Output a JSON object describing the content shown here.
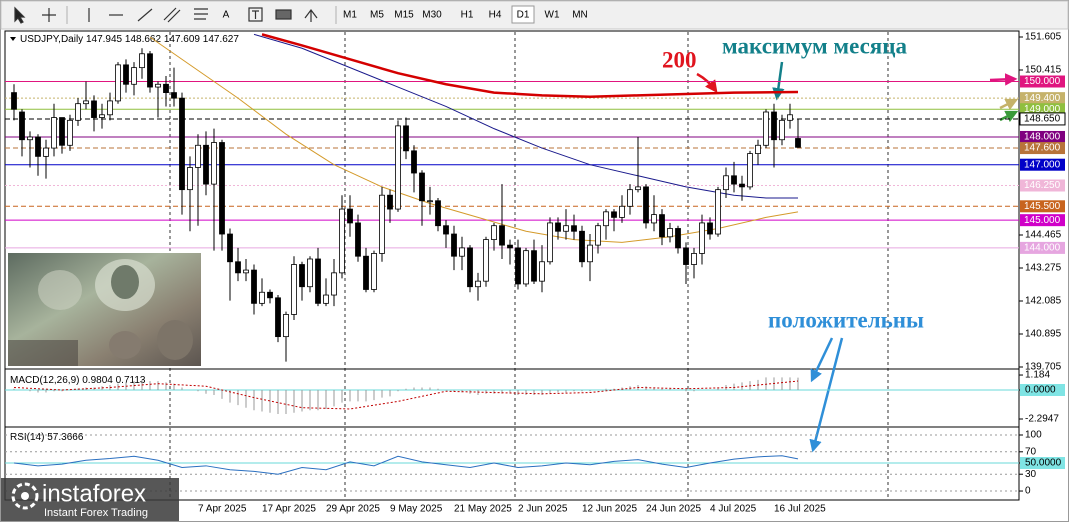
{
  "toolbar": {
    "tools_text": [
      "A"
    ],
    "timeframes": [
      "M1",
      "M5",
      "M15",
      "M30",
      "H1",
      "H4",
      "D1",
      "W1",
      "MN"
    ]
  },
  "logo": {
    "name": "instaforex",
    "tagline": "Instant Forex Trading"
  },
  "chart_data": [
    {
      "type": "candlestick",
      "title": "USDJPY,Daily",
      "up_color": "#ffffff",
      "down_color": "#000000",
      "categories": [
        null,
        null,
        null,
        null,
        null,
        null,
        null,
        null,
        null,
        null,
        null,
        null,
        null,
        null,
        null,
        null,
        null,
        null,
        null,
        null,
        null,
        null,
        null,
        "7 Apr 2025",
        null,
        null,
        null,
        null,
        null,
        null,
        null,
        "17 Apr 2025",
        null,
        null,
        null,
        null,
        null,
        null,
        null,
        "29 Apr 2025",
        null,
        null,
        null,
        null,
        null,
        null,
        null,
        "9 May 2025",
        null,
        null,
        null,
        null,
        null,
        null,
        null,
        "21 May 2025",
        null,
        null,
        null,
        null,
        null,
        null,
        null,
        "2 Jun 2025",
        null,
        null,
        null,
        null,
        null,
        null,
        null,
        "12 Jun 2025",
        null,
        null,
        null,
        null,
        null,
        null,
        null,
        "24 Jun 2025",
        null,
        null,
        null,
        null,
        null,
        null,
        null,
        "4 Jul 2025",
        null,
        null,
        null,
        null,
        null,
        null,
        null,
        "16 Jul 2025",
        null,
        null,
        null
      ],
      "ohlc": [
        [
          149.6,
          149.9,
          148.6,
          149.0
        ],
        [
          148.9,
          149.0,
          147.3,
          147.9
        ],
        [
          147.9,
          148.2,
          146.9,
          148.0
        ],
        [
          148.0,
          148.1,
          146.6,
          147.3
        ],
        [
          147.3,
          147.9,
          146.5,
          147.6
        ],
        [
          147.6,
          149.2,
          147.3,
          148.7
        ],
        [
          148.7,
          148.7,
          147.4,
          147.7
        ],
        [
          147.7,
          148.8,
          147.5,
          148.6
        ],
        [
          148.6,
          149.4,
          148.4,
          149.2
        ],
        [
          149.2,
          150.0,
          149.0,
          149.3
        ],
        [
          149.3,
          149.5,
          148.2,
          148.7
        ],
        [
          148.7,
          149.2,
          148.3,
          148.8
        ],
        [
          148.8,
          149.6,
          148.6,
          149.3
        ],
        [
          149.3,
          150.7,
          149.2,
          150.6
        ],
        [
          150.6,
          150.8,
          149.6,
          149.9
        ],
        [
          149.9,
          150.7,
          149.5,
          150.5
        ],
        [
          150.5,
          151.2,
          150.1,
          151.0
        ],
        [
          151.0,
          151.1,
          149.6,
          149.8
        ],
        [
          149.8,
          150.0,
          148.7,
          149.9
        ],
        [
          149.9,
          150.2,
          149.1,
          149.6
        ],
        [
          149.6,
          150.5,
          149.1,
          149.4
        ],
        [
          149.4,
          149.6,
          145.2,
          146.1
        ],
        [
          146.1,
          147.3,
          144.6,
          146.9
        ],
        [
          146.9,
          148.1,
          144.8,
          147.7
        ],
        [
          147.7,
          148.2,
          145.9,
          146.3
        ],
        [
          146.3,
          148.3,
          143.9,
          147.8
        ],
        [
          147.8,
          147.9,
          143.9,
          144.5
        ],
        [
          144.5,
          144.7,
          142.1,
          143.5
        ],
        [
          143.5,
          144.0,
          142.8,
          143.1
        ],
        [
          143.1,
          143.6,
          142.8,
          143.2
        ],
        [
          143.2,
          143.4,
          141.6,
          142.0
        ],
        [
          142.0,
          142.9,
          141.9,
          142.4
        ],
        [
          142.4,
          142.5,
          142.0,
          142.2
        ],
        [
          142.2,
          142.3,
          140.6,
          140.8
        ],
        [
          140.8,
          141.7,
          139.9,
          141.6
        ],
        [
          141.6,
          143.7,
          141.4,
          143.4
        ],
        [
          143.4,
          143.5,
          142.1,
          142.6
        ],
        [
          142.6,
          143.7,
          142.4,
          143.6
        ],
        [
          143.6,
          144.0,
          141.9,
          142.0
        ],
        [
          142.0,
          142.9,
          141.9,
          142.3
        ],
        [
          142.3,
          143.6,
          141.9,
          143.1
        ],
        [
          143.1,
          145.9,
          142.9,
          145.4
        ],
        [
          145.4,
          145.9,
          144.4,
          144.9
        ],
        [
          144.9,
          145.2,
          143.5,
          143.7
        ],
        [
          143.7,
          144.0,
          142.4,
          142.5
        ],
        [
          142.5,
          143.9,
          142.4,
          143.8
        ],
        [
          143.8,
          146.2,
          143.5,
          145.9
        ],
        [
          145.9,
          146.1,
          144.9,
          145.4
        ],
        [
          145.4,
          148.6,
          145.3,
          148.4
        ],
        [
          148.4,
          148.7,
          147.2,
          147.5
        ],
        [
          147.5,
          147.7,
          146.0,
          146.7
        ],
        [
          146.7,
          146.8,
          144.8,
          145.7
        ],
        [
          145.7,
          146.2,
          145.2,
          145.7
        ],
        [
          145.7,
          145.8,
          144.6,
          144.8
        ],
        [
          144.8,
          145.0,
          144.0,
          144.5
        ],
        [
          144.5,
          144.8,
          143.2,
          143.7
        ],
        [
          143.7,
          144.4,
          143.2,
          144.0
        ],
        [
          144.0,
          144.1,
          142.4,
          142.6
        ],
        [
          142.6,
          143.1,
          142.1,
          142.8
        ],
        [
          142.8,
          144.4,
          142.6,
          144.3
        ],
        [
          144.3,
          144.9,
          143.9,
          144.8
        ],
        [
          144.8,
          146.3,
          143.6,
          144.1
        ],
        [
          144.1,
          144.3,
          143.4,
          144.0
        ],
        [
          144.0,
          144.3,
          142.5,
          142.7
        ],
        [
          142.7,
          144.0,
          142.6,
          143.9
        ],
        [
          143.9,
          144.3,
          142.7,
          142.8
        ],
        [
          142.8,
          144.1,
          142.4,
          143.5
        ],
        [
          143.5,
          145.1,
          143.4,
          144.9
        ],
        [
          144.9,
          145.1,
          144.3,
          144.6
        ],
        [
          144.6,
          145.4,
          144.3,
          144.8
        ],
        [
          144.8,
          145.2,
          144.3,
          144.6
        ],
        [
          144.6,
          144.8,
          143.3,
          143.5
        ],
        [
          143.5,
          144.5,
          142.8,
          144.1
        ],
        [
          144.1,
          144.9,
          143.8,
          144.8
        ],
        [
          144.8,
          145.4,
          144.3,
          145.3
        ],
        [
          145.3,
          145.4,
          144.6,
          145.1
        ],
        [
          145.1,
          145.9,
          144.9,
          145.5
        ],
        [
          145.5,
          146.3,
          145.2,
          146.1
        ],
        [
          146.1,
          148.0,
          146.0,
          146.2
        ],
        [
          146.2,
          146.3,
          144.7,
          144.9
        ],
        [
          144.9,
          145.9,
          144.6,
          145.2
        ],
        [
          145.2,
          145.4,
          144.1,
          144.4
        ],
        [
          144.4,
          144.9,
          144.2,
          144.7
        ],
        [
          144.7,
          144.8,
          143.8,
          144.0
        ],
        [
          144.0,
          144.2,
          142.7,
          143.4
        ],
        [
          143.4,
          144.0,
          142.9,
          143.8
        ],
        [
          143.8,
          145.2,
          143.4,
          144.9
        ],
        [
          144.9,
          145.1,
          144.3,
          144.5
        ],
        [
          144.5,
          146.2,
          144.4,
          146.1
        ],
        [
          146.1,
          146.9,
          145.8,
          146.6
        ],
        [
          146.6,
          147.1,
          146.0,
          146.3
        ],
        [
          146.3,
          146.6,
          145.7,
          146.2
        ],
        [
          146.2,
          147.5,
          146.1,
          147.4
        ],
        [
          147.4,
          147.9,
          147.0,
          147.7
        ],
        [
          147.7,
          149.0,
          147.6,
          148.9
        ],
        [
          148.9,
          149.2,
          146.9,
          147.9
        ],
        [
          147.9,
          148.8,
          147.7,
          148.6
        ],
        [
          148.6,
          149.2,
          148.3,
          148.8
        ],
        [
          147.945,
          148.662,
          147.609,
          147.627
        ]
      ],
      "series": [
        {
          "color": "#d40000",
          "x": [
            31,
            36,
            42,
            48,
            54,
            60,
            66,
            72,
            78,
            84,
            90,
            98
          ],
          "values": [
            151.7,
            151.3,
            150.8,
            150.3,
            149.9,
            149.6,
            149.5,
            149.45,
            149.5,
            149.55,
            149.6,
            149.62
          ]
        },
        {
          "color": "#1a1a8c",
          "x": [
            30,
            36,
            42,
            48,
            54,
            60,
            66,
            72,
            78,
            84,
            90,
            94,
            98
          ],
          "values": [
            151.7,
            151.2,
            150.5,
            149.8,
            149.1,
            148.3,
            147.6,
            147.0,
            146.6,
            146.2,
            145.9,
            145.8,
            145.8
          ]
        },
        {
          "color": "#d49a2a",
          "x": [
            17,
            22,
            28,
            34,
            40,
            46,
            52,
            58,
            64,
            70,
            76,
            82,
            88,
            94,
            98
          ],
          "values": [
            151.6,
            150.6,
            149.4,
            148.1,
            147.0,
            146.2,
            145.6,
            145.1,
            144.6,
            144.3,
            144.2,
            144.4,
            144.7,
            145.1,
            145.3
          ]
        }
      ],
      "levels": [
        {
          "value": 150,
          "label": "150.000",
          "color": "#e0157f"
        },
        {
          "value": 149.4,
          "label": "149.400",
          "color": "#c5b26a",
          "style": "dotted"
        },
        {
          "value": 149,
          "label": "149.000",
          "color": "#8fbf3f"
        },
        {
          "value": 148.65,
          "label": "148.650",
          "color": "#000000",
          "box": "#ffffff",
          "style": "dashed"
        },
        {
          "value": 148,
          "label": "148.000",
          "color": "#800080"
        },
        {
          "value": 147.6,
          "label": "147.600",
          "color": "#b8733a",
          "style": "dashed"
        },
        {
          "value": 147,
          "label": "147.000",
          "color": "#0000c8"
        },
        {
          "value": 146.25,
          "label": "146.250",
          "color": "#f0b6d8",
          "style": "dotted"
        },
        {
          "value": 145.5,
          "label": "145.500",
          "color": "#c8641e",
          "style": "dashed"
        },
        {
          "value": 145,
          "label": "145.000",
          "color": "#d000c8"
        },
        {
          "value": 144,
          "label": "144.000",
          "color": "#e6a6e0"
        }
      ],
      "annotations": [
        {
          "text": "200",
          "color": "#e0141e"
        },
        {
          "text": "максимум месяца",
          "color": "#13808a"
        },
        {
          "text": "положительны",
          "color": "#2f8fd8"
        }
      ],
      "ylim": [
        139.669,
        151.749
      ],
      "yticks": [
        151.605,
        150.415,
        144.465,
        143.275,
        142.085,
        140.895,
        139.705
      ],
      "grid": false
    },
    {
      "type": "macd",
      "title": "MACD(12,26,9)",
      "color": "#9a9a9a",
      "values": [
        0.1,
        0.0,
        -0.1,
        -0.2,
        -0.2,
        -0.1,
        -0.1,
        0.0,
        0.1,
        0.2,
        0.2,
        0.3,
        0.4,
        0.5,
        0.6,
        0.7,
        0.8,
        0.7,
        0.7,
        0.6,
        0.5,
        0.2,
        0.0,
        -0.1,
        -0.3,
        -0.4,
        -0.7,
        -1.0,
        -1.2,
        -1.4,
        -1.6,
        -1.7,
        -1.8,
        -1.9,
        -1.9,
        -1.8,
        -1.7,
        -1.6,
        -1.6,
        -1.5,
        -1.3,
        -1.0,
        -0.9,
        -0.9,
        -0.9,
        -0.8,
        -0.6,
        -0.5,
        -0.1,
        0.1,
        0.2,
        0.2,
        0.2,
        0.1,
        0.0,
        -0.1,
        -0.2,
        -0.3,
        -0.4,
        -0.3,
        -0.3,
        -0.3,
        -0.3,
        -0.4,
        -0.4,
        -0.4,
        -0.4,
        -0.3,
        -0.2,
        -0.2,
        -0.1,
        -0.1,
        -0.1,
        0.0,
        0.1,
        0.1,
        0.2,
        0.3,
        0.4,
        0.3,
        0.2,
        0.1,
        0.1,
        0.0,
        -0.1,
        -0.1,
        0.0,
        0.0,
        0.2,
        0.4,
        0.5,
        0.6,
        0.7,
        0.8,
        1.0,
        1.0,
        1.0,
        1.0,
        0.9804
      ],
      "signal": {
        "color": "#c00000",
        "x": [
          0,
          6,
          12,
          18,
          24,
          30,
          36,
          42,
          48,
          54,
          60,
          66,
          72,
          78,
          84,
          90,
          98
        ],
        "values": [
          0.2,
          0.0,
          0.2,
          0.5,
          0.3,
          -0.6,
          -1.4,
          -1.5,
          -0.9,
          -0.1,
          -0.2,
          -0.3,
          -0.2,
          0.2,
          0.1,
          0.2,
          0.7113
        ]
      },
      "ylim": [
        -2.769,
        1.503
      ],
      "yticks": [
        1.184,
        {
          "value": 0,
          "label": "0.0000"
        },
        -2.2947
      ]
    },
    {
      "type": "line",
      "title": "RSI(14)",
      "color": "#2a6fc0",
      "x": [
        0,
        3,
        6,
        9,
        12,
        15,
        18,
        21,
        24,
        27,
        30,
        33,
        36,
        39,
        42,
        45,
        48,
        51,
        54,
        57,
        60,
        63,
        66,
        69,
        72,
        75,
        78,
        81,
        84,
        87,
        90,
        93,
        96,
        98
      ],
      "values": [
        50,
        45,
        48,
        55,
        58,
        62,
        55,
        42,
        45,
        38,
        35,
        30,
        42,
        38,
        52,
        45,
        62,
        52,
        47,
        42,
        50,
        42,
        45,
        50,
        47,
        53,
        56,
        48,
        42,
        50,
        57,
        61,
        63,
        57.3666
      ],
      "ylim": [
        -16,
        110.7
      ],
      "yticks": [
        100,
        70,
        {
          "value": 50,
          "label": "50.0000"
        },
        30,
        0
      ],
      "grid": true
    }
  ]
}
